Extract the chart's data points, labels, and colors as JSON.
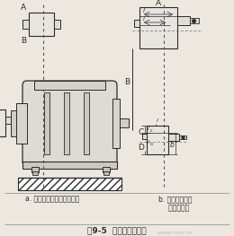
{
  "bg_color": "#ede8df",
  "lc": "#2a2a2a",
  "title": "图9-5  皮带轮校正方法",
  "sub_a": "a. 宽度相等的带轮校正方法",
  "sub_b": "b. 宽度不等的带\n   轮校正方法",
  "watermark": "www.com.cn"
}
